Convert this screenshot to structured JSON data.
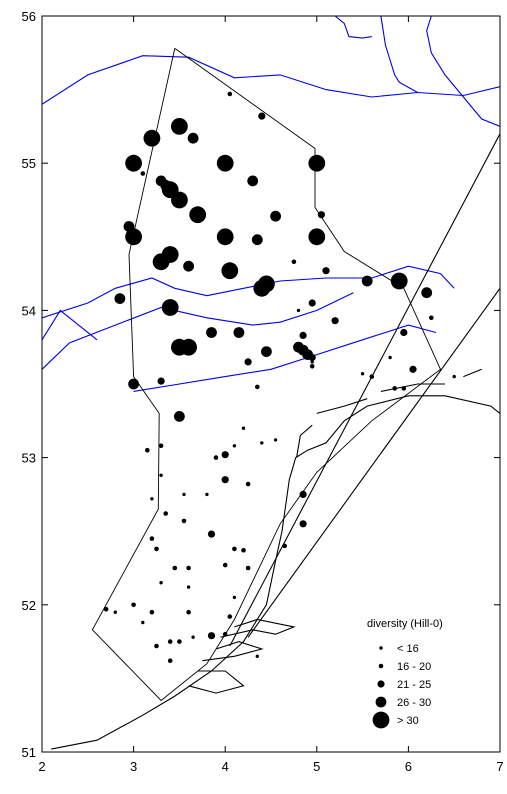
{
  "chart_data": {
    "type": "scatter",
    "title": "",
    "xlabel": "",
    "ylabel": "",
    "xlim": [
      2,
      7
    ],
    "ylim": [
      51,
      56
    ],
    "x_ticks": [
      "2",
      "3",
      "4",
      "5",
      "6",
      "7"
    ],
    "y_ticks": [
      "51",
      "52",
      "53",
      "54",
      "55",
      "56"
    ],
    "grid": false,
    "legend": {
      "title": "diversity (Hill-0)",
      "placement": "bottom-right",
      "classes": [
        {
          "label": "< 16",
          "size_class": 1
        },
        {
          "label": "16 - 20",
          "size_class": 2
        },
        {
          "label": "21 - 25",
          "size_class": 3
        },
        {
          "label": "26 - 30",
          "size_class": 4
        },
        {
          "label": "> 30",
          "size_class": 5
        }
      ]
    },
    "colors": {
      "coastline": "#000000",
      "depth_contour": "#0000ee",
      "survey_boundary": "#000000",
      "stations": "#000000"
    },
    "survey_boundary": [
      [
        3.45,
        55.78
      ],
      [
        4.98,
        55.1
      ],
      [
        4.98,
        54.7
      ],
      [
        5.3,
        54.4
      ],
      [
        5.95,
        54.15
      ],
      [
        6.35,
        53.6
      ],
      [
        5.6,
        53.25
      ],
      [
        5.0,
        52.9
      ],
      [
        4.6,
        52.55
      ],
      [
        4.1,
        51.9
      ],
      [
        3.8,
        51.6
      ],
      [
        3.3,
        51.35
      ],
      [
        2.55,
        51.83
      ],
      [
        3.27,
        52.65
      ],
      [
        3.28,
        53.3
      ],
      [
        3.0,
        53.55
      ],
      [
        2.95,
        54.38
      ],
      [
        3.45,
        55.78
      ]
    ],
    "transect_lines": [
      [
        [
          4.05,
          51.72
        ],
        [
          7.0,
          55.2
        ]
      ],
      [
        [
          4.25,
          51.78
        ],
        [
          7.0,
          54.15
        ]
      ]
    ],
    "coastline": [
      [
        [
          2.1,
          51.02
        ],
        [
          2.6,
          51.08
        ],
        [
          3.1,
          51.25
        ],
        [
          3.45,
          51.38
        ],
        [
          3.85,
          51.55
        ],
        [
          4.2,
          51.75
        ],
        [
          4.45,
          52.0
        ],
        [
          4.55,
          52.3
        ],
        [
          4.62,
          52.5
        ],
        [
          4.7,
          52.85
        ],
        [
          4.77,
          53.0
        ],
        [
          4.9,
          53.05
        ],
        [
          5.1,
          53.1
        ],
        [
          5.3,
          53.25
        ],
        [
          5.55,
          53.35
        ],
        [
          6.0,
          53.42
        ],
        [
          6.4,
          53.42
        ],
        [
          6.9,
          53.35
        ],
        [
          7.0,
          53.3
        ]
      ],
      [
        [
          4.78,
          53.0
        ],
        [
          4.82,
          53.15
        ],
        [
          4.95,
          53.22
        ]
      ],
      [
        [
          5.0,
          53.3
        ],
        [
          5.3,
          53.35
        ],
        [
          5.55,
          53.4
        ]
      ],
      [
        [
          5.7,
          53.45
        ],
        [
          6.1,
          53.5
        ],
        [
          6.4,
          53.5
        ]
      ],
      [
        [
          6.6,
          53.55
        ],
        [
          6.8,
          53.6
        ]
      ],
      [
        [
          3.6,
          51.45
        ],
        [
          3.9,
          51.4
        ],
        [
          4.2,
          51.45
        ],
        [
          4.0,
          51.55
        ],
        [
          3.7,
          51.55
        ]
      ],
      [
        [
          3.75,
          51.62
        ],
        [
          4.1,
          51.65
        ],
        [
          4.4,
          51.7
        ],
        [
          4.15,
          51.75
        ],
        [
          3.9,
          51.7
        ]
      ],
      [
        [
          3.95,
          51.78
        ],
        [
          4.3,
          51.83
        ],
        [
          4.55,
          51.8
        ],
        [
          4.75,
          51.85
        ],
        [
          4.35,
          51.9
        ],
        [
          4.1,
          51.85
        ]
      ]
    ],
    "depth_contours": [
      [
        [
          2.0,
          55.4
        ],
        [
          2.5,
          55.6
        ],
        [
          3.1,
          55.73
        ],
        [
          3.6,
          55.72
        ],
        [
          4.1,
          55.58
        ],
        [
          4.6,
          55.6
        ],
        [
          5.1,
          55.5
        ],
        [
          5.6,
          55.45
        ],
        [
          6.1,
          55.48
        ],
        [
          6.6,
          55.46
        ],
        [
          7.0,
          55.52
        ]
      ],
      [
        [
          5.2,
          56.0
        ],
        [
          5.3,
          55.95
        ],
        [
          5.35,
          55.86
        ],
        [
          5.5,
          55.85
        ],
        [
          5.6,
          55.86
        ]
      ],
      [
        [
          5.7,
          56.0
        ],
        [
          5.75,
          55.8
        ],
        [
          5.85,
          55.6
        ],
        [
          5.9,
          55.55
        ],
        [
          6.1,
          55.48
        ]
      ],
      [
        [
          6.25,
          56.0
        ],
        [
          6.2,
          55.9
        ],
        [
          6.25,
          55.75
        ],
        [
          6.4,
          55.6
        ],
        [
          6.6,
          55.45
        ],
        [
          6.8,
          55.3
        ],
        [
          7.0,
          55.25
        ]
      ],
      [
        [
          2.0,
          53.95
        ],
        [
          2.5,
          54.05
        ],
        [
          2.8,
          54.15
        ],
        [
          3.2,
          54.22
        ],
        [
          3.45,
          54.15
        ],
        [
          3.8,
          54.1
        ],
        [
          4.2,
          54.15
        ],
        [
          4.6,
          54.2
        ],
        [
          5.1,
          54.22
        ],
        [
          5.6,
          54.22
        ],
        [
          6.0,
          54.3
        ],
        [
          6.35,
          54.25
        ],
        [
          6.5,
          54.15
        ]
      ],
      [
        [
          2.0,
          53.6
        ],
        [
          2.3,
          53.78
        ],
        [
          2.8,
          53.9
        ],
        [
          3.3,
          54.02
        ],
        [
          3.8,
          53.95
        ],
        [
          4.3,
          53.9
        ],
        [
          4.6,
          53.92
        ],
        [
          5.0,
          54.0
        ],
        [
          5.4,
          54.12
        ]
      ],
      [
        [
          2.0,
          53.8
        ],
        [
          2.2,
          54.0
        ],
        [
          2.4,
          53.9
        ],
        [
          2.6,
          53.8
        ]
      ],
      [
        [
          3.0,
          53.45
        ],
        [
          3.5,
          53.5
        ],
        [
          4.0,
          53.55
        ],
        [
          4.5,
          53.6
        ],
        [
          5.0,
          53.7
        ],
        [
          5.5,
          53.8
        ],
        [
          6.0,
          53.9
        ],
        [
          6.3,
          53.85
        ]
      ]
    ],
    "series": [
      {
        "size_class": 5,
        "points": [
          [
            3.2,
            55.17
          ],
          [
            3.0,
            55.0
          ],
          [
            3.5,
            55.25
          ],
          [
            4.0,
            55.0
          ],
          [
            5.0,
            55.0
          ],
          [
            3.4,
            54.82
          ],
          [
            3.5,
            54.75
          ],
          [
            3.7,
            54.65
          ],
          [
            3.0,
            54.5
          ],
          [
            4.0,
            54.5
          ],
          [
            5.0,
            54.5
          ],
          [
            3.4,
            54.38
          ],
          [
            3.3,
            54.33
          ],
          [
            4.05,
            54.27
          ],
          [
            4.45,
            54.18
          ],
          [
            4.4,
            54.15
          ],
          [
            3.4,
            54.02
          ],
          [
            5.9,
            54.2
          ],
          [
            3.5,
            53.75
          ],
          [
            3.6,
            53.75
          ]
        ]
      },
      {
        "size_class": 4,
        "points": [
          [
            3.65,
            55.17
          ],
          [
            3.3,
            54.88
          ],
          [
            3.35,
            54.85
          ],
          [
            4.3,
            54.88
          ],
          [
            2.95,
            54.57
          ],
          [
            3.0,
            54.52
          ],
          [
            4.55,
            54.64
          ],
          [
            4.35,
            54.48
          ],
          [
            3.85,
            53.85
          ],
          [
            2.85,
            54.08
          ],
          [
            3.6,
            54.3
          ],
          [
            4.15,
            53.85
          ],
          [
            4.45,
            53.72
          ],
          [
            4.8,
            53.75
          ],
          [
            4.85,
            53.73
          ],
          [
            4.9,
            53.7
          ],
          [
            3.0,
            53.5
          ],
          [
            3.5,
            53.28
          ],
          [
            6.2,
            54.12
          ],
          [
            5.55,
            54.2
          ]
        ]
      },
      {
        "size_class": 3,
        "points": [
          [
            4.4,
            55.32
          ],
          [
            5.05,
            54.65
          ],
          [
            5.1,
            54.27
          ],
          [
            4.95,
            54.05
          ],
          [
            5.2,
            53.93
          ],
          [
            4.85,
            53.83
          ],
          [
            3.3,
            53.52
          ],
          [
            4.25,
            53.65
          ],
          [
            4.95,
            53.68
          ],
          [
            5.95,
            53.85
          ],
          [
            6.05,
            53.6
          ],
          [
            4.0,
            53.02
          ],
          [
            4.85,
            52.75
          ],
          [
            4.85,
            52.55
          ],
          [
            3.85,
            52.48
          ],
          [
            4.0,
            52.85
          ],
          [
            3.85,
            51.79
          ]
        ]
      },
      {
        "size_class": 2,
        "points": [
          [
            4.05,
            55.47
          ],
          [
            3.1,
            54.93
          ],
          [
            3.3,
            53.08
          ],
          [
            3.35,
            52.62
          ],
          [
            4.75,
            54.33
          ],
          [
            4.35,
            53.48
          ],
          [
            4.95,
            53.62
          ],
          [
            5.6,
            53.55
          ],
          [
            5.85,
            53.47
          ],
          [
            5.95,
            53.47
          ],
          [
            6.25,
            53.95
          ],
          [
            3.15,
            53.05
          ],
          [
            3.9,
            53.0
          ],
          [
            4.25,
            52.82
          ],
          [
            3.55,
            52.57
          ],
          [
            4.1,
            52.38
          ],
          [
            3.2,
            52.45
          ],
          [
            3.25,
            52.38
          ],
          [
            4.2,
            52.37
          ],
          [
            4.65,
            52.4
          ],
          [
            4.25,
            52.25
          ],
          [
            4.0,
            52.27
          ],
          [
            3.45,
            52.25
          ],
          [
            3.6,
            52.25
          ],
          [
            2.7,
            51.97
          ],
          [
            3.0,
            52.0
          ],
          [
            3.2,
            51.95
          ],
          [
            3.6,
            51.95
          ],
          [
            4.05,
            51.92
          ],
          [
            3.5,
            51.75
          ],
          [
            4.0,
            51.8
          ],
          [
            3.25,
            51.72
          ],
          [
            3.4,
            51.75
          ],
          [
            3.4,
            51.62
          ]
        ]
      },
      {
        "size_class": 1,
        "points": [
          [
            4.2,
            53.2
          ],
          [
            4.4,
            53.1
          ],
          [
            4.1,
            53.08
          ],
          [
            4.55,
            53.12
          ],
          [
            3.3,
            52.88
          ],
          [
            3.55,
            52.75
          ],
          [
            3.2,
            52.72
          ],
          [
            3.8,
            52.75
          ],
          [
            3.3,
            52.15
          ],
          [
            3.6,
            52.12
          ],
          [
            2.8,
            51.95
          ],
          [
            3.1,
            51.88
          ],
          [
            4.1,
            52.05
          ],
          [
            3.65,
            51.78
          ],
          [
            4.35,
            51.65
          ],
          [
            5.8,
            53.68
          ],
          [
            5.5,
            53.57
          ],
          [
            6.5,
            53.55
          ],
          [
            4.95,
            53.65
          ],
          [
            4.8,
            54.0
          ]
        ]
      }
    ]
  }
}
